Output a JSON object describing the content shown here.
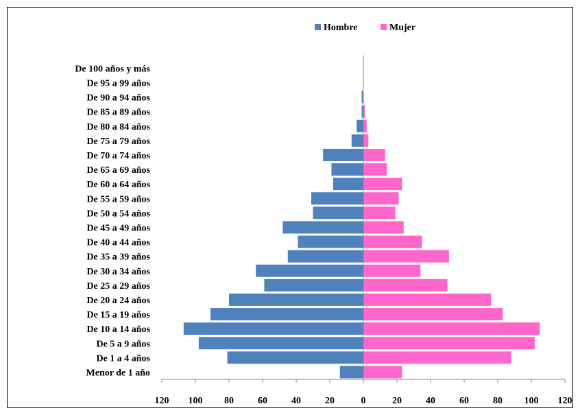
{
  "chart_data": {
    "type": "bar",
    "orientation": "horizontal",
    "layout": "population-pyramid",
    "categories": [
      "Menor de 1 año",
      "De 1 a 4 años",
      "De 5 a 9 años",
      "De 10 a 14 años",
      "De 15 a 19 años",
      "De 20 a 24 años",
      "De 25 a 29 años",
      "De 30 a 34 años",
      "De 35 a 39 años",
      "De 40 a 44 años",
      "De 45 a 49 años",
      "De 50 a 54 años",
      "De 55 a 59 años",
      "De 60 a 64 años",
      "De 65 a 69 años",
      "De 70 a 74 años",
      "De 75 a 79 años",
      "De 80 a 84 años",
      "De 85 a 89 años",
      "De 90 a 94 años",
      "De 95 a 99 años",
      "De 100 años y más"
    ],
    "series": [
      {
        "name": "Hombre",
        "color": "#4F81BD",
        "values": [
          14,
          81,
          98,
          107,
          91,
          80,
          59,
          64,
          45,
          39,
          48,
          30,
          31,
          18,
          19,
          24,
          7,
          4,
          1,
          1,
          0,
          0
        ]
      },
      {
        "name": "Mujer",
        "color": "#FF66CC",
        "values": [
          23,
          88,
          102,
          105,
          83,
          76,
          50,
          34,
          51,
          35,
          24,
          19,
          21,
          23,
          14,
          13,
          3,
          2,
          1,
          0,
          0,
          0
        ]
      }
    ],
    "x_ticks": [
      "120",
      "100",
      "80",
      "60",
      "40",
      "20",
      "0",
      "20",
      "40",
      "60",
      "80",
      "100",
      "120"
    ],
    "xlim": [
      -120,
      120
    ],
    "legend_position": "top-center",
    "grid": false
  }
}
